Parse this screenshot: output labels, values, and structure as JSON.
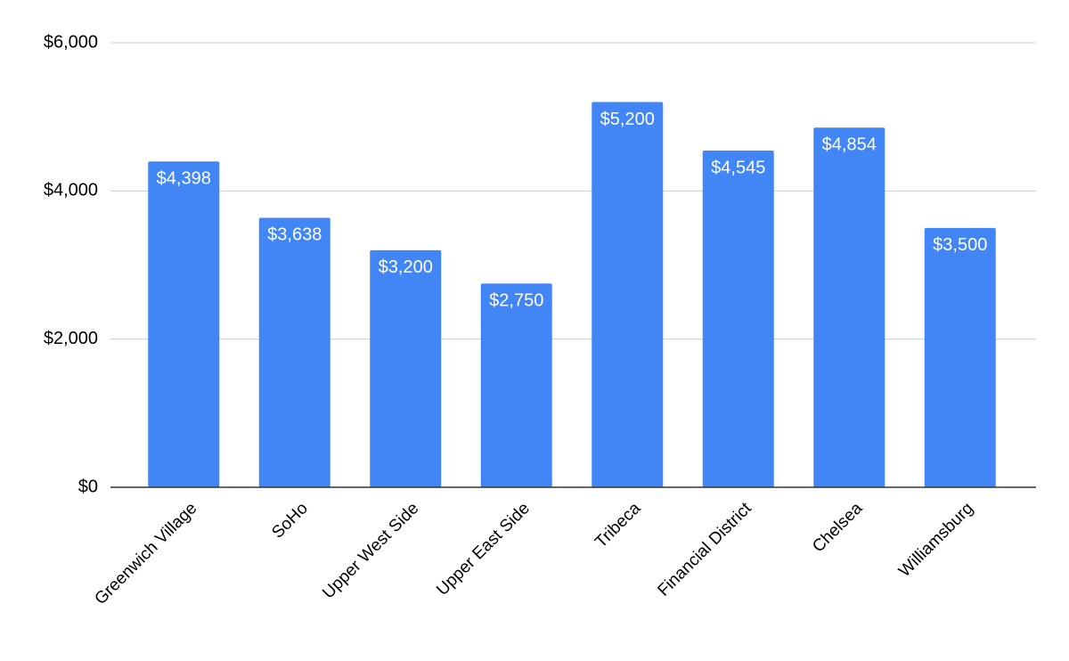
{
  "chart_data": {
    "type": "bar",
    "categories": [
      "Greenwich Village",
      "SoHo",
      "Upper West Side",
      "Upper East Side",
      "Tribeca",
      "Financial District",
      "Chelsea",
      "Williamsburg"
    ],
    "values": [
      4398,
      3638,
      3200,
      2750,
      5200,
      4545,
      4854,
      3500
    ],
    "value_labels": [
      "$4,398",
      "$3,638",
      "$3,200",
      "$2,750",
      "$5,200",
      "$4,545",
      "$4,854",
      "$3,500"
    ],
    "color": "#4285f4",
    "ylim": [
      0,
      6000
    ],
    "yticks": [
      {
        "value": 0,
        "label": "$0"
      },
      {
        "value": 2000,
        "label": "$2,000"
      },
      {
        "value": 4000,
        "label": "$4,000"
      },
      {
        "value": 6000,
        "label": "$6,000"
      }
    ],
    "grid": true
  }
}
